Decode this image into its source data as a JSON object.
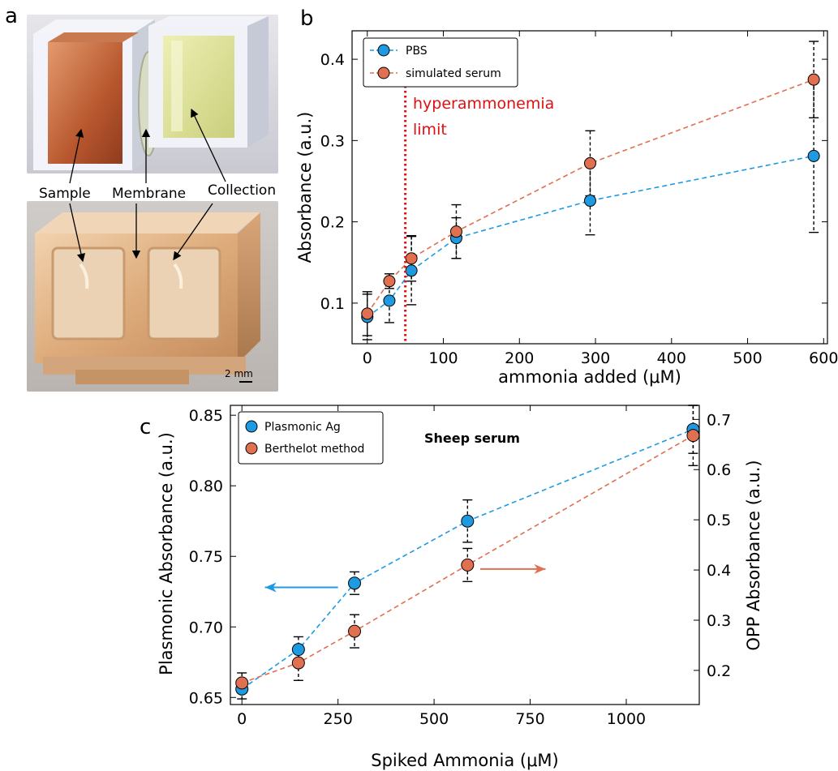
{
  "panels": {
    "a": {
      "letter": "a",
      "labels": {
        "sample": "Sample",
        "membrane": "Membrane",
        "collection": "Collection"
      },
      "scale_bar": "2 mm"
    },
    "b": {
      "letter": "b"
    },
    "c": {
      "letter": "c"
    }
  },
  "colors": {
    "blue": "#1f9ae0",
    "orange": "#e07050",
    "red": "#e01010",
    "black": "#000000"
  },
  "chart_data": [
    {
      "id": "b",
      "type": "line",
      "xlabel": "ammonia added (μM)",
      "ylabel": "Absorbance (a.u.)",
      "xlim": [
        -20,
        605
      ],
      "ylim": [
        0.05,
        0.435
      ],
      "xticks": [
        0,
        100,
        200,
        300,
        400,
        500,
        600
      ],
      "yticks": [
        0.1,
        0.2,
        0.3,
        0.4
      ],
      "grid": false,
      "legend_position": "top-left",
      "x": [
        0,
        29,
        58,
        117,
        293,
        587
      ],
      "series": [
        {
          "name": "PBS",
          "color": "#1f9ae0",
          "values": [
            0.083,
            0.103,
            0.14,
            0.18,
            0.226,
            0.281
          ],
          "errors": [
            0.028,
            0.027,
            0.042,
            0.025,
            0.042,
            0.094
          ]
        },
        {
          "name": "simulated serum",
          "color": "#e07050",
          "values": [
            0.087,
            0.127,
            0.155,
            0.188,
            0.272,
            0.375
          ],
          "errors": [
            0.027,
            0.009,
            0.028,
            0.033,
            0.04,
            0.047
          ]
        }
      ],
      "annotations": [
        {
          "text_lines": [
            "hyperammonemia",
            "limit"
          ],
          "x": 50,
          "style": "red dotted vertical line"
        }
      ]
    },
    {
      "id": "c",
      "type": "line",
      "title": "Sheep serum",
      "xlabel": "Spiked Ammonia (μM)",
      "ylabel_left": "Plasmonic Absorbance (a.u.)",
      "ylabel_right": "OPP Absorbance (a.u.)",
      "xlim": [
        -30,
        1190
      ],
      "ylim_left": [
        0.645,
        0.857
      ],
      "ylim_right": [
        0.132,
        0.728
      ],
      "xticks": [
        0,
        250,
        500,
        750,
        1000
      ],
      "yticks_left": [
        0.65,
        0.7,
        0.75,
        0.8,
        0.85
      ],
      "yticks_right": [
        0.2,
        0.3,
        0.4,
        0.5,
        0.6,
        0.7
      ],
      "grid": false,
      "legend_position": "top-left",
      "x": [
        0,
        147,
        293,
        587,
        1174
      ],
      "series": [
        {
          "name": "Plasmonic Ag",
          "axis": "left",
          "color": "#1f9ae0",
          "values": [
            0.656,
            0.684,
            0.731,
            0.775,
            0.84
          ],
          "errors": [
            0.007,
            0.009,
            0.008,
            0.015,
            0.017
          ]
        },
        {
          "name": "Berthelot method",
          "axis": "right",
          "color": "#e07050",
          "values": [
            0.175,
            0.215,
            0.278,
            0.41,
            0.668
          ],
          "errors": [
            0.02,
            0.035,
            0.033,
            0.033,
            0.06
          ]
        }
      ],
      "annotations": [
        {
          "type": "arrow",
          "direction": "left",
          "color": "#1f9ae0",
          "x_from": 250,
          "x_to": 60,
          "y_left": 0.728
        },
        {
          "type": "arrow",
          "direction": "right",
          "color": "#e07050",
          "x_from": 620,
          "x_to": 790,
          "y_left": 0.741
        }
      ]
    }
  ]
}
